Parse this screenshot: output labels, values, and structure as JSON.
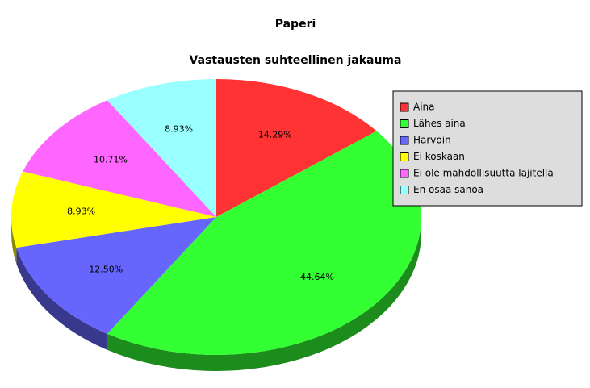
{
  "chart_data": {
    "type": "pie",
    "title": "Paperi",
    "subtitle": "Vastausten suhteellinen jakauma",
    "categories": [
      "Aina",
      "Lähes aina",
      "Harvoin",
      "Ei koskaan",
      "Ei ole mahdollisuutta lajitella",
      "En osaa sanoa"
    ],
    "values": [
      14.29,
      44.64,
      12.5,
      8.93,
      10.71,
      8.93
    ],
    "value_labels": [
      "14.29%",
      "44.64%",
      "12.50%",
      "8.93%",
      "10.71%",
      "8.93%"
    ],
    "colors": [
      "#ff3333",
      "#33ff33",
      "#6666ff",
      "#ffff00",
      "#ff66ff",
      "#99ffff"
    ],
    "legend": "right"
  }
}
